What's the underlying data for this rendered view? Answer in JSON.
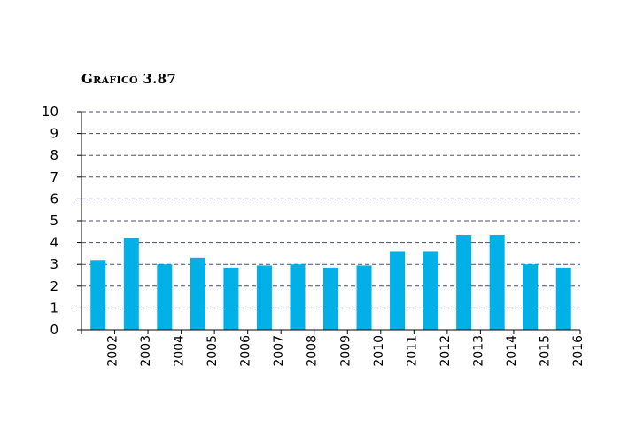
{
  "title": "Gráfico 3.87",
  "colors": {
    "bar": "#00b0e6",
    "grid": "#4a4f7a",
    "axis": "#000000"
  },
  "chart_data": {
    "type": "bar",
    "title": "Gráfico 3.87",
    "xlabel": "",
    "ylabel": "",
    "ylim": [
      0,
      10
    ],
    "yticks": [
      0,
      1,
      2,
      3,
      4,
      5,
      6,
      7,
      8,
      9,
      10
    ],
    "grid": true,
    "categories": [
      "2002",
      "2003",
      "2004",
      "2005",
      "2006",
      "2007",
      "2008",
      "2009",
      "2010",
      "2011",
      "2012",
      "2013",
      "2014",
      "2015",
      "2016"
    ],
    "values": [
      3.2,
      4.2,
      3.0,
      3.3,
      2.85,
      2.95,
      3.0,
      2.85,
      2.95,
      3.6,
      3.6,
      4.35,
      4.35,
      3.0,
      2.85
    ]
  }
}
